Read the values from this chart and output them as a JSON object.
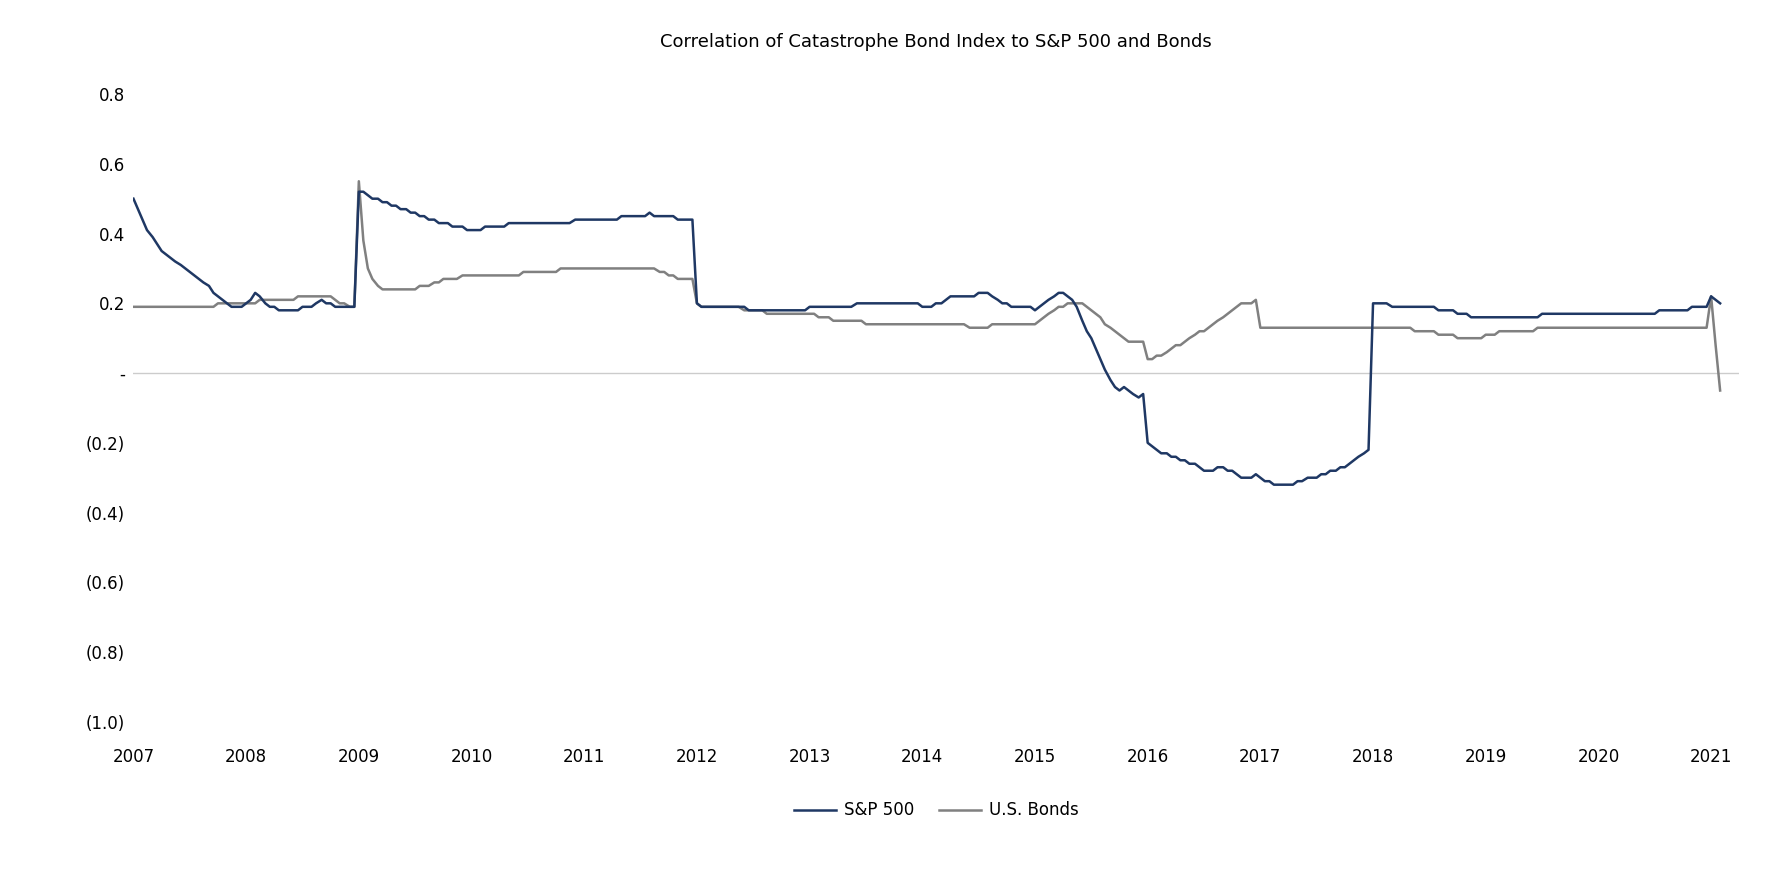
{
  "title": "Correlation of Catastrophe Bond Index to S&P 500 and Bonds",
  "title_fontsize": 13,
  "background_color": "#ffffff",
  "sp500_color": "#1f3864",
  "bonds_color": "#808080",
  "sp500_label": "S&P 500",
  "bonds_label": "U.S. Bonds",
  "line_width": 1.8,
  "ylim": [
    -1.05,
    0.88
  ],
  "yticks": [
    0.8,
    0.6,
    0.4,
    0.2,
    0.0,
    -0.2,
    -0.4,
    -0.6,
    -0.8,
    -1.0
  ],
  "ytick_labels": [
    "0.8",
    "0.6",
    "0.4",
    "0.2",
    "-",
    "(0.2)",
    "(0.4)",
    "(0.6)",
    "(0.8)",
    "(1.0)"
  ],
  "zero_line_color": "#cccccc",
  "sp500_x": [
    2007.0,
    2007.04,
    2007.08,
    2007.12,
    2007.17,
    2007.21,
    2007.25,
    2007.29,
    2007.33,
    2007.37,
    2007.42,
    2007.46,
    2007.5,
    2007.54,
    2007.58,
    2007.62,
    2007.67,
    2007.71,
    2007.75,
    2007.79,
    2007.83,
    2007.87,
    2007.92,
    2007.96,
    2008.0,
    2008.04,
    2008.08,
    2008.12,
    2008.17,
    2008.21,
    2008.25,
    2008.29,
    2008.33,
    2008.37,
    2008.42,
    2008.46,
    2008.5,
    2008.54,
    2008.58,
    2008.62,
    2008.67,
    2008.71,
    2008.75,
    2008.79,
    2008.83,
    2008.87,
    2008.92,
    2008.96,
    2009.0,
    2009.04,
    2009.08,
    2009.12,
    2009.17,
    2009.21,
    2009.25,
    2009.29,
    2009.33,
    2009.37,
    2009.42,
    2009.46,
    2009.5,
    2009.54,
    2009.58,
    2009.62,
    2009.67,
    2009.71,
    2009.75,
    2009.79,
    2009.83,
    2009.87,
    2009.92,
    2009.96,
    2010.0,
    2010.04,
    2010.08,
    2010.12,
    2010.17,
    2010.21,
    2010.25,
    2010.29,
    2010.33,
    2010.37,
    2010.42,
    2010.46,
    2010.5,
    2010.54,
    2010.58,
    2010.62,
    2010.67,
    2010.71,
    2010.75,
    2010.79,
    2010.83,
    2010.87,
    2010.92,
    2010.96,
    2011.0,
    2011.04,
    2011.08,
    2011.12,
    2011.17,
    2011.21,
    2011.25,
    2011.29,
    2011.33,
    2011.37,
    2011.42,
    2011.46,
    2011.5,
    2011.54,
    2011.58,
    2011.62,
    2011.67,
    2011.71,
    2011.75,
    2011.79,
    2011.83,
    2011.87,
    2011.92,
    2011.96,
    2012.0,
    2012.04,
    2012.08,
    2012.12,
    2012.17,
    2012.21,
    2012.25,
    2012.29,
    2012.33,
    2012.37,
    2012.42,
    2012.46,
    2012.5,
    2012.54,
    2012.58,
    2012.62,
    2012.67,
    2012.71,
    2012.75,
    2012.79,
    2012.83,
    2012.87,
    2012.92,
    2012.96,
    2013.0,
    2013.04,
    2013.08,
    2013.12,
    2013.17,
    2013.21,
    2013.25,
    2013.29,
    2013.33,
    2013.37,
    2013.42,
    2013.46,
    2013.5,
    2013.54,
    2013.58,
    2013.62,
    2013.67,
    2013.71,
    2013.75,
    2013.79,
    2013.83,
    2013.87,
    2013.92,
    2013.96,
    2014.0,
    2014.04,
    2014.08,
    2014.12,
    2014.17,
    2014.21,
    2014.25,
    2014.29,
    2014.33,
    2014.37,
    2014.42,
    2014.46,
    2014.5,
    2014.54,
    2014.58,
    2014.62,
    2014.67,
    2014.71,
    2014.75,
    2014.79,
    2014.83,
    2014.87,
    2014.92,
    2014.96,
    2015.0,
    2015.04,
    2015.08,
    2015.12,
    2015.17,
    2015.21,
    2015.25,
    2015.29,
    2015.33,
    2015.37,
    2015.42,
    2015.46,
    2015.5,
    2015.54,
    2015.58,
    2015.62,
    2015.67,
    2015.71,
    2015.75,
    2015.79,
    2015.83,
    2015.87,
    2015.92,
    2015.96,
    2016.0,
    2016.04,
    2016.08,
    2016.12,
    2016.17,
    2016.21,
    2016.25,
    2016.29,
    2016.33,
    2016.37,
    2016.42,
    2016.46,
    2016.5,
    2016.54,
    2016.58,
    2016.62,
    2016.67,
    2016.71,
    2016.75,
    2016.79,
    2016.83,
    2016.87,
    2016.92,
    2016.96,
    2017.0,
    2017.04,
    2017.08,
    2017.12,
    2017.17,
    2017.21,
    2017.25,
    2017.29,
    2017.33,
    2017.37,
    2017.42,
    2017.46,
    2017.5,
    2017.54,
    2017.58,
    2017.62,
    2017.67,
    2017.71,
    2017.75,
    2017.79,
    2017.83,
    2017.87,
    2017.92,
    2017.96,
    2018.0,
    2018.04,
    2018.08,
    2018.12,
    2018.17,
    2018.21,
    2018.25,
    2018.29,
    2018.33,
    2018.37,
    2018.42,
    2018.46,
    2018.5,
    2018.54,
    2018.58,
    2018.62,
    2018.67,
    2018.71,
    2018.75,
    2018.79,
    2018.83,
    2018.87,
    2018.92,
    2018.96,
    2019.0,
    2019.04,
    2019.08,
    2019.12,
    2019.17,
    2019.21,
    2019.25,
    2019.29,
    2019.33,
    2019.37,
    2019.42,
    2019.46,
    2019.5,
    2019.54,
    2019.58,
    2019.62,
    2019.67,
    2019.71,
    2019.75,
    2019.79,
    2019.83,
    2019.87,
    2019.92,
    2019.96,
    2020.0,
    2020.04,
    2020.08,
    2020.12,
    2020.17,
    2020.21,
    2020.25,
    2020.29,
    2020.33,
    2020.37,
    2020.42,
    2020.46,
    2020.5,
    2020.54,
    2020.58,
    2020.62,
    2020.67,
    2020.71,
    2020.75,
    2020.79,
    2020.83,
    2020.87,
    2020.92,
    2020.96,
    2021.0,
    2021.04,
    2021.08
  ],
  "sp500_y": [
    0.5,
    0.47,
    0.44,
    0.41,
    0.39,
    0.37,
    0.35,
    0.34,
    0.33,
    0.32,
    0.31,
    0.3,
    0.29,
    0.28,
    0.27,
    0.26,
    0.25,
    0.23,
    0.22,
    0.21,
    0.2,
    0.19,
    0.19,
    0.19,
    0.2,
    0.21,
    0.23,
    0.22,
    0.2,
    0.19,
    0.19,
    0.18,
    0.18,
    0.18,
    0.18,
    0.18,
    0.19,
    0.19,
    0.19,
    0.2,
    0.21,
    0.2,
    0.2,
    0.19,
    0.19,
    0.19,
    0.19,
    0.19,
    0.52,
    0.52,
    0.51,
    0.5,
    0.5,
    0.49,
    0.49,
    0.48,
    0.48,
    0.47,
    0.47,
    0.46,
    0.46,
    0.45,
    0.45,
    0.44,
    0.44,
    0.43,
    0.43,
    0.43,
    0.42,
    0.42,
    0.42,
    0.41,
    0.41,
    0.41,
    0.41,
    0.42,
    0.42,
    0.42,
    0.42,
    0.42,
    0.43,
    0.43,
    0.43,
    0.43,
    0.43,
    0.43,
    0.43,
    0.43,
    0.43,
    0.43,
    0.43,
    0.43,
    0.43,
    0.43,
    0.44,
    0.44,
    0.44,
    0.44,
    0.44,
    0.44,
    0.44,
    0.44,
    0.44,
    0.44,
    0.45,
    0.45,
    0.45,
    0.45,
    0.45,
    0.45,
    0.46,
    0.45,
    0.45,
    0.45,
    0.45,
    0.45,
    0.44,
    0.44,
    0.44,
    0.44,
    0.2,
    0.19,
    0.19,
    0.19,
    0.19,
    0.19,
    0.19,
    0.19,
    0.19,
    0.19,
    0.19,
    0.18,
    0.18,
    0.18,
    0.18,
    0.18,
    0.18,
    0.18,
    0.18,
    0.18,
    0.18,
    0.18,
    0.18,
    0.18,
    0.19,
    0.19,
    0.19,
    0.19,
    0.19,
    0.19,
    0.19,
    0.19,
    0.19,
    0.19,
    0.2,
    0.2,
    0.2,
    0.2,
    0.2,
    0.2,
    0.2,
    0.2,
    0.2,
    0.2,
    0.2,
    0.2,
    0.2,
    0.2,
    0.19,
    0.19,
    0.19,
    0.2,
    0.2,
    0.21,
    0.22,
    0.22,
    0.22,
    0.22,
    0.22,
    0.22,
    0.23,
    0.23,
    0.23,
    0.22,
    0.21,
    0.2,
    0.2,
    0.19,
    0.19,
    0.19,
    0.19,
    0.19,
    0.18,
    0.19,
    0.2,
    0.21,
    0.22,
    0.23,
    0.23,
    0.22,
    0.21,
    0.19,
    0.15,
    0.12,
    0.1,
    0.07,
    0.04,
    0.01,
    -0.02,
    -0.04,
    -0.05,
    -0.04,
    -0.05,
    -0.06,
    -0.07,
    -0.06,
    -0.2,
    -0.21,
    -0.22,
    -0.23,
    -0.23,
    -0.24,
    -0.24,
    -0.25,
    -0.25,
    -0.26,
    -0.26,
    -0.27,
    -0.28,
    -0.28,
    -0.28,
    -0.27,
    -0.27,
    -0.28,
    -0.28,
    -0.29,
    -0.3,
    -0.3,
    -0.3,
    -0.29,
    -0.3,
    -0.31,
    -0.31,
    -0.32,
    -0.32,
    -0.32,
    -0.32,
    -0.32,
    -0.31,
    -0.31,
    -0.3,
    -0.3,
    -0.3,
    -0.29,
    -0.29,
    -0.28,
    -0.28,
    -0.27,
    -0.27,
    -0.26,
    -0.25,
    -0.24,
    -0.23,
    -0.22,
    0.2,
    0.2,
    0.2,
    0.2,
    0.19,
    0.19,
    0.19,
    0.19,
    0.19,
    0.19,
    0.19,
    0.19,
    0.19,
    0.19,
    0.18,
    0.18,
    0.18,
    0.18,
    0.17,
    0.17,
    0.17,
    0.16,
    0.16,
    0.16,
    0.16,
    0.16,
    0.16,
    0.16,
    0.16,
    0.16,
    0.16,
    0.16,
    0.16,
    0.16,
    0.16,
    0.16,
    0.17,
    0.17,
    0.17,
    0.17,
    0.17,
    0.17,
    0.17,
    0.17,
    0.17,
    0.17,
    0.17,
    0.17,
    0.17,
    0.17,
    0.17,
    0.17,
    0.17,
    0.17,
    0.17,
    0.17,
    0.17,
    0.17,
    0.17,
    0.17,
    0.17,
    0.18,
    0.18,
    0.18,
    0.18,
    0.18,
    0.18,
    0.18,
    0.19,
    0.19,
    0.19,
    0.19,
    0.22,
    0.21,
    0.2
  ],
  "bonds_x": [
    2007.0,
    2007.04,
    2007.08,
    2007.12,
    2007.17,
    2007.21,
    2007.25,
    2007.29,
    2007.33,
    2007.37,
    2007.42,
    2007.46,
    2007.5,
    2007.54,
    2007.58,
    2007.62,
    2007.67,
    2007.71,
    2007.75,
    2007.79,
    2007.83,
    2007.87,
    2007.92,
    2007.96,
    2008.0,
    2008.04,
    2008.08,
    2008.12,
    2008.17,
    2008.21,
    2008.25,
    2008.29,
    2008.33,
    2008.37,
    2008.42,
    2008.46,
    2008.5,
    2008.54,
    2008.58,
    2008.62,
    2008.67,
    2008.71,
    2008.75,
    2008.79,
    2008.83,
    2008.87,
    2008.92,
    2008.96,
    2009.0,
    2009.04,
    2009.08,
    2009.12,
    2009.17,
    2009.21,
    2009.25,
    2009.29,
    2009.33,
    2009.37,
    2009.42,
    2009.46,
    2009.5,
    2009.54,
    2009.58,
    2009.62,
    2009.67,
    2009.71,
    2009.75,
    2009.79,
    2009.83,
    2009.87,
    2009.92,
    2009.96,
    2010.0,
    2010.04,
    2010.08,
    2010.12,
    2010.17,
    2010.21,
    2010.25,
    2010.29,
    2010.33,
    2010.37,
    2010.42,
    2010.46,
    2010.5,
    2010.54,
    2010.58,
    2010.62,
    2010.67,
    2010.71,
    2010.75,
    2010.79,
    2010.83,
    2010.87,
    2010.92,
    2010.96,
    2011.0,
    2011.04,
    2011.08,
    2011.12,
    2011.17,
    2011.21,
    2011.25,
    2011.29,
    2011.33,
    2011.37,
    2011.42,
    2011.46,
    2011.5,
    2011.54,
    2011.58,
    2011.62,
    2011.67,
    2011.71,
    2011.75,
    2011.79,
    2011.83,
    2011.87,
    2011.92,
    2011.96,
    2012.0,
    2012.04,
    2012.08,
    2012.12,
    2012.17,
    2012.21,
    2012.25,
    2012.29,
    2012.33,
    2012.37,
    2012.42,
    2012.46,
    2012.5,
    2012.54,
    2012.58,
    2012.62,
    2012.67,
    2012.71,
    2012.75,
    2012.79,
    2012.83,
    2012.87,
    2012.92,
    2012.96,
    2013.0,
    2013.04,
    2013.08,
    2013.12,
    2013.17,
    2013.21,
    2013.25,
    2013.29,
    2013.33,
    2013.37,
    2013.42,
    2013.46,
    2013.5,
    2013.54,
    2013.58,
    2013.62,
    2013.67,
    2013.71,
    2013.75,
    2013.79,
    2013.83,
    2013.87,
    2013.92,
    2013.96,
    2014.0,
    2014.04,
    2014.08,
    2014.12,
    2014.17,
    2014.21,
    2014.25,
    2014.29,
    2014.33,
    2014.37,
    2014.42,
    2014.46,
    2014.5,
    2014.54,
    2014.58,
    2014.62,
    2014.67,
    2014.71,
    2014.75,
    2014.79,
    2014.83,
    2014.87,
    2014.92,
    2014.96,
    2015.0,
    2015.04,
    2015.08,
    2015.12,
    2015.17,
    2015.21,
    2015.25,
    2015.29,
    2015.33,
    2015.37,
    2015.42,
    2015.46,
    2015.5,
    2015.54,
    2015.58,
    2015.62,
    2015.67,
    2015.71,
    2015.75,
    2015.79,
    2015.83,
    2015.87,
    2015.92,
    2015.96,
    2016.0,
    2016.04,
    2016.08,
    2016.12,
    2016.17,
    2016.21,
    2016.25,
    2016.29,
    2016.33,
    2016.37,
    2016.42,
    2016.46,
    2016.5,
    2016.54,
    2016.58,
    2016.62,
    2016.67,
    2016.71,
    2016.75,
    2016.79,
    2016.83,
    2016.87,
    2016.92,
    2016.96,
    2017.0,
    2017.04,
    2017.08,
    2017.12,
    2017.17,
    2017.21,
    2017.25,
    2017.29,
    2017.33,
    2017.37,
    2017.42,
    2017.46,
    2017.5,
    2017.54,
    2017.58,
    2017.62,
    2017.67,
    2017.71,
    2017.75,
    2017.79,
    2017.83,
    2017.87,
    2017.92,
    2017.96,
    2018.0,
    2018.04,
    2018.08,
    2018.12,
    2018.17,
    2018.21,
    2018.25,
    2018.29,
    2018.33,
    2018.37,
    2018.42,
    2018.46,
    2018.5,
    2018.54,
    2018.58,
    2018.62,
    2018.67,
    2018.71,
    2018.75,
    2018.79,
    2018.83,
    2018.87,
    2018.92,
    2018.96,
    2019.0,
    2019.04,
    2019.08,
    2019.12,
    2019.17,
    2019.21,
    2019.25,
    2019.29,
    2019.33,
    2019.37,
    2019.42,
    2019.46,
    2019.5,
    2019.54,
    2019.58,
    2019.62,
    2019.67,
    2019.71,
    2019.75,
    2019.79,
    2019.83,
    2019.87,
    2019.92,
    2019.96,
    2020.0,
    2020.04,
    2020.08,
    2020.12,
    2020.17,
    2020.21,
    2020.25,
    2020.29,
    2020.33,
    2020.37,
    2020.42,
    2020.46,
    2020.5,
    2020.54,
    2020.58,
    2020.62,
    2020.67,
    2020.71,
    2020.75,
    2020.79,
    2020.83,
    2020.87,
    2020.92,
    2020.96,
    2021.0,
    2021.04,
    2021.08
  ],
  "bonds_y": [
    0.19,
    0.19,
    0.19,
    0.19,
    0.19,
    0.19,
    0.19,
    0.19,
    0.19,
    0.19,
    0.19,
    0.19,
    0.19,
    0.19,
    0.19,
    0.19,
    0.19,
    0.19,
    0.2,
    0.2,
    0.2,
    0.2,
    0.2,
    0.2,
    0.2,
    0.2,
    0.2,
    0.21,
    0.21,
    0.21,
    0.21,
    0.21,
    0.21,
    0.21,
    0.21,
    0.22,
    0.22,
    0.22,
    0.22,
    0.22,
    0.22,
    0.22,
    0.22,
    0.21,
    0.2,
    0.2,
    0.19,
    0.19,
    0.55,
    0.38,
    0.3,
    0.27,
    0.25,
    0.24,
    0.24,
    0.24,
    0.24,
    0.24,
    0.24,
    0.24,
    0.24,
    0.25,
    0.25,
    0.25,
    0.26,
    0.26,
    0.27,
    0.27,
    0.27,
    0.27,
    0.28,
    0.28,
    0.28,
    0.28,
    0.28,
    0.28,
    0.28,
    0.28,
    0.28,
    0.28,
    0.28,
    0.28,
    0.28,
    0.29,
    0.29,
    0.29,
    0.29,
    0.29,
    0.29,
    0.29,
    0.29,
    0.3,
    0.3,
    0.3,
    0.3,
    0.3,
    0.3,
    0.3,
    0.3,
    0.3,
    0.3,
    0.3,
    0.3,
    0.3,
    0.3,
    0.3,
    0.3,
    0.3,
    0.3,
    0.3,
    0.3,
    0.3,
    0.29,
    0.29,
    0.28,
    0.28,
    0.27,
    0.27,
    0.27,
    0.27,
    0.2,
    0.19,
    0.19,
    0.19,
    0.19,
    0.19,
    0.19,
    0.19,
    0.19,
    0.19,
    0.18,
    0.18,
    0.18,
    0.18,
    0.18,
    0.17,
    0.17,
    0.17,
    0.17,
    0.17,
    0.17,
    0.17,
    0.17,
    0.17,
    0.17,
    0.17,
    0.16,
    0.16,
    0.16,
    0.15,
    0.15,
    0.15,
    0.15,
    0.15,
    0.15,
    0.15,
    0.14,
    0.14,
    0.14,
    0.14,
    0.14,
    0.14,
    0.14,
    0.14,
    0.14,
    0.14,
    0.14,
    0.14,
    0.14,
    0.14,
    0.14,
    0.14,
    0.14,
    0.14,
    0.14,
    0.14,
    0.14,
    0.14,
    0.13,
    0.13,
    0.13,
    0.13,
    0.13,
    0.14,
    0.14,
    0.14,
    0.14,
    0.14,
    0.14,
    0.14,
    0.14,
    0.14,
    0.14,
    0.15,
    0.16,
    0.17,
    0.18,
    0.19,
    0.19,
    0.2,
    0.2,
    0.2,
    0.2,
    0.19,
    0.18,
    0.17,
    0.16,
    0.14,
    0.13,
    0.12,
    0.11,
    0.1,
    0.09,
    0.09,
    0.09,
    0.09,
    0.04,
    0.04,
    0.05,
    0.05,
    0.06,
    0.07,
    0.08,
    0.08,
    0.09,
    0.1,
    0.11,
    0.12,
    0.12,
    0.13,
    0.14,
    0.15,
    0.16,
    0.17,
    0.18,
    0.19,
    0.2,
    0.2,
    0.2,
    0.21,
    0.13,
    0.13,
    0.13,
    0.13,
    0.13,
    0.13,
    0.13,
    0.13,
    0.13,
    0.13,
    0.13,
    0.13,
    0.13,
    0.13,
    0.13,
    0.13,
    0.13,
    0.13,
    0.13,
    0.13,
    0.13,
    0.13,
    0.13,
    0.13,
    0.13,
    0.13,
    0.13,
    0.13,
    0.13,
    0.13,
    0.13,
    0.13,
    0.13,
    0.12,
    0.12,
    0.12,
    0.12,
    0.12,
    0.11,
    0.11,
    0.11,
    0.11,
    0.1,
    0.1,
    0.1,
    0.1,
    0.1,
    0.1,
    0.11,
    0.11,
    0.11,
    0.12,
    0.12,
    0.12,
    0.12,
    0.12,
    0.12,
    0.12,
    0.12,
    0.13,
    0.13,
    0.13,
    0.13,
    0.13,
    0.13,
    0.13,
    0.13,
    0.13,
    0.13,
    0.13,
    0.13,
    0.13,
    0.13,
    0.13,
    0.13,
    0.13,
    0.13,
    0.13,
    0.13,
    0.13,
    0.13,
    0.13,
    0.13,
    0.13,
    0.13,
    0.13,
    0.13,
    0.13,
    0.13,
    0.13,
    0.13,
    0.13,
    0.13,
    0.13,
    0.13,
    0.13,
    0.22,
    0.08,
    -0.05
  ]
}
